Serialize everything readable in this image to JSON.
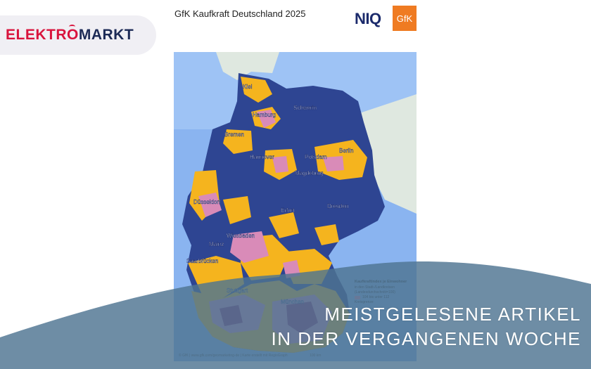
{
  "brand": {
    "logo_text_red": "ELEKTR",
    "logo_text_o": "O",
    "logo_text_blue": "MARKT"
  },
  "infographic": {
    "title": "GfK Kaufkraft Deutschland 2025",
    "niq_logo": "NIQ",
    "gfk_logo": "GfK",
    "cities": {
      "kiel": "Kiel",
      "hamburg": "Hamburg",
      "schwerin": "Schwerin",
      "bremen": "Bremen",
      "hannover": "Hannover",
      "potsdam": "Potsdam",
      "berlin": "Berlin",
      "magdeburg": "Magdeburg",
      "dusseldorf": "Düsseldorf",
      "dresden": "Dresden",
      "erfurt": "Erfurt",
      "wiesbaden": "Wiesbaden",
      "mainz": "Mainz",
      "saarbrucken": "Saarbrücken",
      "stuttgart": "Stuttgart",
      "munchen": "München"
    },
    "legend": {
      "title": "Kaufkraftindex je Einwohner",
      "subtitle1": "in den Stadt-/Landkreisen",
      "subtitle2": "(Landesdurchschnitt=100)",
      "row_a": "104    bis unter    112",
      "row_b": "Kreisgrenze"
    },
    "footer": "© GfK | www.gfk.com/geomarketing-de | Karte erstellt mit RegioGraph",
    "scale": "100 km"
  },
  "banner": {
    "line1": "MEISTGELESENE ARTIKEL",
    "line2": "IN DER VERGANGENEN WOCHE"
  },
  "colors": {
    "brand_red": "#d9143d",
    "brand_navy": "#1c2a56",
    "map_blue": "#2e4592",
    "map_yellow": "#f5b41e",
    "map_pink": "#d98bb8",
    "map_purple": "#8e2a6e",
    "sea": "#8ab4f0",
    "wave": "#5e7f99"
  }
}
